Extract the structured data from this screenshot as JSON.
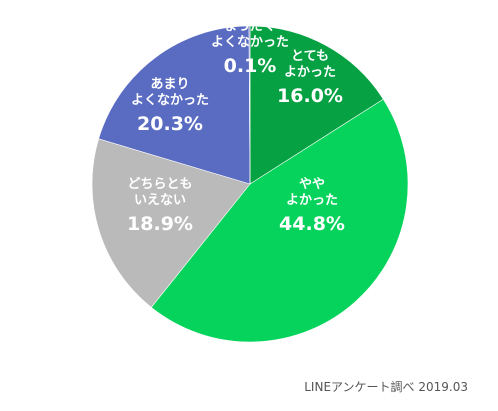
{
  "chart_data": {
    "type": "pie",
    "title": "",
    "slices": [
      {
        "label": [
          "とても",
          "よかった"
        ],
        "value": 16.0,
        "value_label": "16.0%",
        "color": "#05A142"
      },
      {
        "label": [
          "やや",
          "よかった"
        ],
        "value": 44.8,
        "value_label": "44.8%",
        "color": "#06D35C"
      },
      {
        "label": [
          "どちらとも",
          "いえない"
        ],
        "value": 18.9,
        "value_label": "18.9%",
        "color": "#BABABA"
      },
      {
        "label": [
          "あまり",
          "よくなかった"
        ],
        "value": 20.3,
        "value_label": "20.3%",
        "color": "#5A6CC2"
      },
      {
        "label": [
          "まったく",
          "よくなかった"
        ],
        "value": 0.1,
        "value_label": "0.1%",
        "color": "#3347A6"
      }
    ],
    "start": "12 o'clock",
    "direction": "clockwise",
    "legend": "none"
  },
  "source": "LINEアンケート調べ 2019.03"
}
